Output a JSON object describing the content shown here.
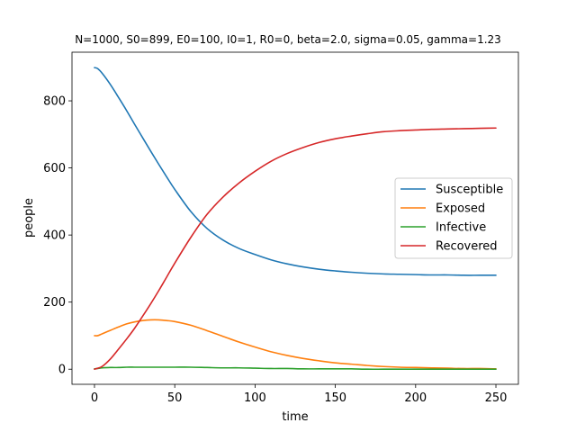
{
  "chart_data": {
    "type": "line",
    "title": "N=1000, S0=899, E0=100, I0=1, R0=0, beta=2.0, sigma=0.05, gamma=1.23",
    "xlabel": "time",
    "ylabel": "people",
    "xlim": [
      -14,
      264
    ],
    "ylim": [
      -45,
      945
    ],
    "xticks": [
      0,
      50,
      100,
      150,
      200,
      250
    ],
    "yticks": [
      0,
      200,
      400,
      600,
      800
    ],
    "grid": false,
    "legend_position": "center-right",
    "x": [
      0,
      2,
      5,
      10,
      15,
      20,
      25,
      30,
      35,
      40,
      45,
      50,
      60,
      70,
      80,
      90,
      100,
      110,
      120,
      130,
      140,
      150,
      160,
      170,
      180,
      190,
      200,
      210,
      220,
      230,
      240,
      250
    ],
    "series": [
      {
        "name": "Susceptible",
        "color": "#1f77b4",
        "values": [
          899,
          896,
          881,
          848,
          810,
          771,
          730,
          690,
          650,
          611,
          573,
          536,
          470,
          420,
          385,
          360,
          342,
          326,
          314,
          305,
          298,
          293,
          289,
          286,
          284,
          283,
          282,
          281,
          281,
          280,
          280,
          280
        ]
      },
      {
        "name": "Exposed",
        "color": "#ff7f0e",
        "values": [
          100,
          100,
          106,
          116,
          126,
          135,
          141,
          145,
          147,
          147,
          145,
          142,
          131,
          115,
          98,
          81,
          66,
          52,
          41,
          32,
          25,
          19,
          15,
          11,
          8,
          6,
          5,
          4,
          3,
          2,
          2,
          1
        ]
      },
      {
        "name": "Infective",
        "color": "#2ca02c",
        "values": [
          1,
          2,
          4,
          5,
          5,
          6,
          6,
          6,
          6,
          6,
          6,
          6,
          6,
          5,
          4,
          4,
          3,
          2,
          2,
          1,
          1,
          1,
          1,
          0,
          0,
          0,
          0,
          0,
          0,
          0,
          0,
          0
        ]
      },
      {
        "name": "Recovered",
        "color": "#d62728",
        "values": [
          0,
          3,
          9,
          31,
          60,
          90,
          122,
          158,
          195,
          234,
          275,
          316,
          393,
          461,
          513,
          555,
          590,
          620,
          643,
          661,
          676,
          687,
          695,
          702,
          708,
          711,
          713,
          715,
          716,
          717,
          718,
          719
        ]
      }
    ]
  }
}
